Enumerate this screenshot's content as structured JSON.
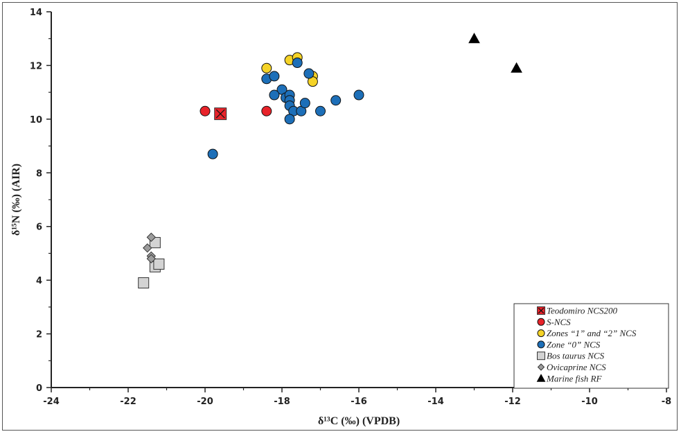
{
  "chart_data": {
    "type": "scatter",
    "xlabel": "δ¹³C (‰) (VPDB)",
    "ylabel": "δ¹⁵N (‰) (AIR)",
    "xlim": [
      -24,
      -8
    ],
    "ylim": [
      0,
      14
    ],
    "xticks": [
      -24,
      -22,
      -20,
      -18,
      -16,
      -14,
      -12,
      -10,
      -8
    ],
    "yticks": [
      0,
      2,
      4,
      6,
      8,
      10,
      12,
      14
    ],
    "grid": false,
    "legend_position": "bottom-right",
    "series": [
      {
        "name": "Teodomiro NCS200",
        "marker": "square-x",
        "color": "#e8232a",
        "points": [
          [
            -19.6,
            10.2
          ]
        ]
      },
      {
        "name": "S-NCS",
        "marker": "circle",
        "color": "#e8232a",
        "points": [
          [
            -20.0,
            10.3
          ],
          [
            -18.4,
            10.3
          ]
        ]
      },
      {
        "name": "Zones “1” and “2” NCS",
        "marker": "circle",
        "color": "#f5d327",
        "points": [
          [
            -18.4,
            11.9
          ],
          [
            -17.8,
            12.2
          ],
          [
            -17.6,
            12.3
          ],
          [
            -17.2,
            11.6
          ],
          [
            -17.2,
            11.4
          ]
        ]
      },
      {
        "name": "Zone “0” NCS",
        "marker": "circle",
        "color": "#1d6fb8",
        "points": [
          [
            -19.8,
            8.7
          ],
          [
            -18.4,
            11.5
          ],
          [
            -18.2,
            11.6
          ],
          [
            -17.6,
            12.1
          ],
          [
            -17.3,
            11.7
          ],
          [
            -18.0,
            11.1
          ],
          [
            -18.2,
            10.9
          ],
          [
            -17.9,
            10.8
          ],
          [
            -17.8,
            10.9
          ],
          [
            -17.8,
            10.7
          ],
          [
            -17.8,
            10.5
          ],
          [
            -17.7,
            10.3
          ],
          [
            -17.5,
            10.3
          ],
          [
            -17.4,
            10.6
          ],
          [
            -17.8,
            10.0
          ],
          [
            -17.0,
            10.3
          ],
          [
            -16.6,
            10.7
          ],
          [
            -16.0,
            10.9
          ]
        ]
      },
      {
        "name": "Bos taurus NCS",
        "marker": "square",
        "color": "#d3d3d3",
        "points": [
          [
            -21.6,
            3.9
          ],
          [
            -21.3,
            4.5
          ],
          [
            -21.2,
            4.6
          ],
          [
            -21.3,
            5.4
          ]
        ]
      },
      {
        "name": "Ovicaprine NCS",
        "marker": "diamond",
        "color": "#9c9c9c",
        "points": [
          [
            -21.4,
            5.6
          ],
          [
            -21.5,
            5.2
          ],
          [
            -21.4,
            4.9
          ],
          [
            -21.4,
            4.8
          ]
        ]
      },
      {
        "name": "Marine fish RF",
        "marker": "triangle",
        "color": "#000000",
        "points": [
          [
            -13.0,
            13.0
          ],
          [
            -11.9,
            11.9
          ]
        ]
      }
    ]
  }
}
